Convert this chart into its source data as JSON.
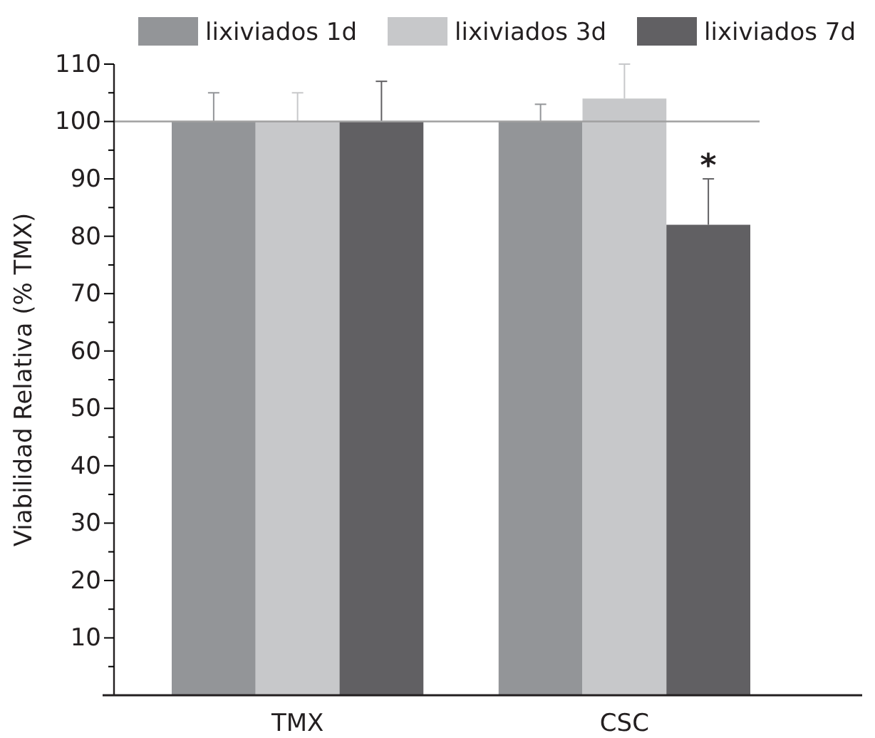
{
  "chart_data": {
    "type": "bar",
    "ylabel": "Viabilidad Relativa (% TMX)",
    "categories": [
      "TMX",
      "CSC"
    ],
    "series": [
      {
        "name": "lixiviados 1d",
        "color": "#939598",
        "values": [
          100,
          100
        ],
        "errors": [
          [
            100,
            105
          ],
          [
            100,
            103
          ]
        ]
      },
      {
        "name": "lixiviados 3d",
        "color": "#c7c8ca",
        "values": [
          100,
          104
        ],
        "errors": [
          [
            100,
            105
          ],
          [
            104,
            110
          ]
        ]
      },
      {
        "name": "lixiviados 7d",
        "color": "#616063",
        "values": [
          100,
          82
        ],
        "errors": [
          [
            100,
            107
          ],
          [
            82,
            90
          ]
        ]
      }
    ],
    "ylim": [
      0,
      110
    ],
    "yticks": [
      {
        "value": 5,
        "label": null
      },
      10,
      {
        "value": 15,
        "label": null
      },
      20,
      {
        "value": 25,
        "label": null
      },
      30,
      {
        "value": 35,
        "label": null
      },
      40,
      {
        "value": 45,
        "label": null
      },
      50,
      {
        "value": 55,
        "label": null
      },
      60,
      {
        "value": 65,
        "label": null
      },
      70,
      {
        "value": 75,
        "label": null
      },
      80,
      {
        "value": 85,
        "label": null
      },
      90,
      {
        "value": 95,
        "label": null
      },
      100,
      {
        "value": 105,
        "label": null
      },
      110
    ],
    "ref_lines": [
      {
        "axis": "y",
        "value": 100,
        "color": "#a0a0a0"
      }
    ],
    "annotations": [
      "*"
    ],
    "legend": "top",
    "grid": false
  }
}
